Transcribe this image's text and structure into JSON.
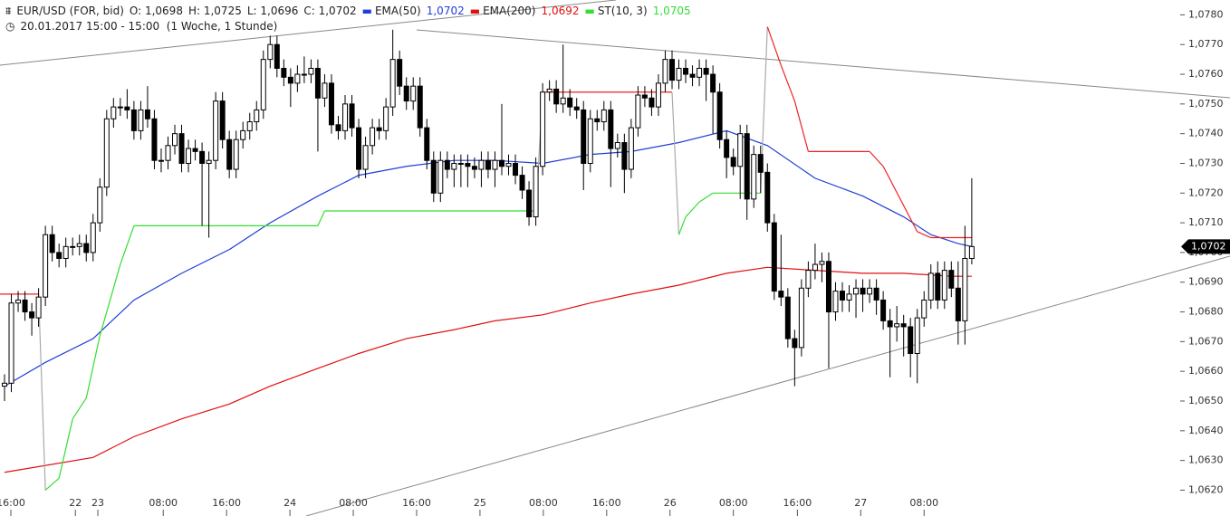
{
  "chart_data": {
    "type": "candlestick",
    "title": "EUR/USD (FOR, bid)",
    "ohlc_labels": [
      "O: 1,0698",
      "H: 1,0725",
      "L: 1,0696",
      "C: 1,0702"
    ],
    "subtitle": "20.01.2017 15:00 - 15:00  (1 Woche, 1 Stunde)",
    "ylim": [
      1.0618,
      1.0785
    ],
    "yticks": [
      {
        "value": 1.062,
        "label": "1,0620"
      },
      {
        "value": 1.063,
        "label": "1,0630"
      },
      {
        "value": 1.064,
        "label": "1,0640"
      },
      {
        "value": 1.065,
        "label": "1,0650"
      },
      {
        "value": 1.066,
        "label": "1,0660"
      },
      {
        "value": 1.067,
        "label": "1,0670"
      },
      {
        "value": 1.068,
        "label": "1,0680"
      },
      {
        "value": 1.069,
        "label": "1,0690"
      },
      {
        "value": 1.07,
        "label": "1,0700"
      },
      {
        "value": 1.071,
        "label": "1,0710"
      },
      {
        "value": 1.072,
        "label": "1,0720"
      },
      {
        "value": 1.073,
        "label": "1,0730"
      },
      {
        "value": 1.074,
        "label": "1,0740"
      },
      {
        "value": 1.075,
        "label": "1,0750"
      },
      {
        "value": 1.076,
        "label": "1,0760"
      },
      {
        "value": 1.077,
        "label": "1,0770"
      },
      {
        "value": 1.078,
        "label": "1,0780"
      }
    ],
    "xlim": [
      -0.665,
      172.2
    ],
    "xticks": [
      {
        "value": 0.93,
        "label": "16:00"
      },
      {
        "value": 10.4,
        "label": "22"
      },
      {
        "value": 13.7,
        "label": "23"
      },
      {
        "value": 23.3,
        "label": "08:00"
      },
      {
        "value": 32.6,
        "label": "16:00"
      },
      {
        "value": 41.9,
        "label": "24"
      },
      {
        "value": 51.2,
        "label": "08:00"
      },
      {
        "value": 60.5,
        "label": "16:00"
      },
      {
        "value": 69.8,
        "label": "25"
      },
      {
        "value": 79.1,
        "label": "08:00"
      },
      {
        "value": 88.4,
        "label": "16:00"
      },
      {
        "value": 97.7,
        "label": "26"
      },
      {
        "value": 107,
        "label": "08:00"
      },
      {
        "value": 116.4,
        "label": "16:00"
      },
      {
        "value": 125.7,
        "label": "27"
      },
      {
        "value": 135,
        "label": "08:00"
      }
    ],
    "last_price": {
      "value": 1.0702,
      "label": "1,0702"
    },
    "ohlc": [
      [
        1.0655,
        1.0659,
        1.065,
        1.0656
      ],
      [
        1.0656,
        1.0686,
        1.0653,
        1.0683
      ],
      [
        1.0683,
        1.0687,
        1.068,
        1.0684
      ],
      [
        1.0684,
        1.0687,
        1.0677,
        1.068
      ],
      [
        1.068,
        1.0683,
        1.0672,
        1.0678
      ],
      [
        1.0678,
        1.0688,
        1.0675,
        1.0685
      ],
      [
        1.0685,
        1.0709,
        1.0682,
        1.0706
      ],
      [
        1.0706,
        1.0709,
        1.0697,
        1.07
      ],
      [
        1.07,
        1.0703,
        1.0695,
        1.0698
      ],
      [
        1.0698,
        1.0705,
        1.0695,
        1.0702
      ],
      [
        1.0702,
        1.0705,
        1.0699,
        1.0702
      ],
      [
        1.0702,
        1.0706,
        1.0699,
        1.0703
      ],
      [
        1.0703,
        1.0706,
        1.0697,
        1.07
      ],
      [
        1.07,
        1.0713,
        1.0697,
        1.071
      ],
      [
        1.071,
        1.0725,
        1.0707,
        1.0722
      ],
      [
        1.0722,
        1.0748,
        1.0719,
        1.0745
      ],
      [
        1.0745,
        1.0752,
        1.0742,
        1.0749
      ],
      [
        1.0749,
        1.0752,
        1.0746,
        1.0749
      ],
      [
        1.0749,
        1.0755,
        1.0745,
        1.0748
      ],
      [
        1.0748,
        1.0751,
        1.0738,
        1.0741
      ],
      [
        1.0741,
        1.0751,
        1.0738,
        1.0748
      ],
      [
        1.0748,
        1.0756,
        1.0742,
        1.0745
      ],
      [
        1.0745,
        1.0748,
        1.0728,
        1.0731
      ],
      [
        1.0731,
        1.0735,
        1.0727,
        1.0731
      ],
      [
        1.0731,
        1.0739,
        1.0728,
        1.0736
      ],
      [
        1.0736,
        1.0743,
        1.0733,
        1.074
      ],
      [
        1.074,
        1.0743,
        1.0727,
        1.073
      ],
      [
        1.073,
        1.0738,
        1.0727,
        1.0735
      ],
      [
        1.0735,
        1.0738,
        1.0731,
        1.0734
      ],
      [
        1.0734,
        1.0737,
        1.0709,
        1.073
      ],
      [
        1.073,
        1.0734,
        1.0705,
        1.0731
      ],
      [
        1.0731,
        1.0754,
        1.0728,
        1.0751
      ],
      [
        1.0751,
        1.0754,
        1.0735,
        1.0738
      ],
      [
        1.0738,
        1.0741,
        1.0725,
        1.0728
      ],
      [
        1.0728,
        1.0741,
        1.0725,
        1.0738
      ],
      [
        1.0738,
        1.0744,
        1.0735,
        1.0741
      ],
      [
        1.0741,
        1.0747,
        1.0738,
        1.0744
      ],
      [
        1.0744,
        1.0751,
        1.0741,
        1.0748
      ],
      [
        1.0748,
        1.0768,
        1.0745,
        1.0765
      ],
      [
        1.0765,
        1.0773,
        1.0762,
        1.077
      ],
      [
        1.077,
        1.0773,
        1.0759,
        1.0762
      ],
      [
        1.0762,
        1.0765,
        1.0756,
        1.0759
      ],
      [
        1.0759,
        1.0762,
        1.0749,
        1.0757
      ],
      [
        1.0757,
        1.0763,
        1.0754,
        1.076
      ],
      [
        1.076,
        1.0766,
        1.0757,
        1.076
      ],
      [
        1.076,
        1.0765,
        1.0757,
        1.0762
      ],
      [
        1.0762,
        1.0765,
        1.0734,
        1.0752
      ],
      [
        1.0752,
        1.076,
        1.0749,
        1.0757
      ],
      [
        1.0757,
        1.076,
        1.074,
        1.0743
      ],
      [
        1.0743,
        1.0746,
        1.0738,
        1.0741
      ],
      [
        1.0741,
        1.0753,
        1.0738,
        1.075
      ],
      [
        1.075,
        1.0753,
        1.0739,
        1.0742
      ],
      [
        1.0742,
        1.0745,
        1.0725,
        1.0728
      ],
      [
        1.0728,
        1.0739,
        1.0725,
        1.0736
      ],
      [
        1.0736,
        1.0745,
        1.0733,
        1.0742
      ],
      [
        1.0742,
        1.0745,
        1.0738,
        1.0741
      ],
      [
        1.0741,
        1.0752,
        1.0738,
        1.0749
      ],
      [
        1.0749,
        1.0775,
        1.0746,
        1.0765
      ],
      [
        1.0765,
        1.0768,
        1.0753,
        1.0756
      ],
      [
        1.0756,
        1.0759,
        1.0748,
        1.0751
      ],
      [
        1.0751,
        1.0759,
        1.0748,
        1.0756
      ],
      [
        1.0756,
        1.0759,
        1.0739,
        1.0742
      ],
      [
        1.0742,
        1.0745,
        1.0728,
        1.0731
      ],
      [
        1.0731,
        1.0734,
        1.0717,
        1.072
      ],
      [
        1.072,
        1.0734,
        1.0717,
        1.0731
      ],
      [
        1.0731,
        1.0734,
        1.0725,
        1.0728
      ],
      [
        1.0728,
        1.0733,
        1.0722,
        1.073
      ],
      [
        1.073,
        1.0733,
        1.0722,
        1.073
      ],
      [
        1.073,
        1.0733,
        1.0722,
        1.0729
      ],
      [
        1.0729,
        1.0732,
        1.0725,
        1.0728
      ],
      [
        1.0728,
        1.0734,
        1.0722,
        1.0731
      ],
      [
        1.0731,
        1.0734,
        1.0725,
        1.0728
      ],
      [
        1.0728,
        1.0734,
        1.0722,
        1.0731
      ],
      [
        1.0731,
        1.075,
        1.0726,
        1.0729
      ],
      [
        1.0729,
        1.0733,
        1.0726,
        1.073
      ],
      [
        1.073,
        1.0733,
        1.0723,
        1.0726
      ],
      [
        1.0726,
        1.0729,
        1.0718,
        1.0721
      ],
      [
        1.0721,
        1.0724,
        1.0709,
        1.0712
      ],
      [
        1.0712,
        1.0732,
        1.0709,
        1.0729
      ],
      [
        1.0729,
        1.0757,
        1.0726,
        1.0754
      ],
      [
        1.0754,
        1.0758,
        1.0751,
        1.0755
      ],
      [
        1.0755,
        1.0758,
        1.0747,
        1.075
      ],
      [
        1.075,
        1.077,
        1.0747,
        1.0752
      ],
      [
        1.0752,
        1.0755,
        1.0746,
        1.0749
      ],
      [
        1.0749,
        1.0752,
        1.0745,
        1.0748
      ],
      [
        1.0748,
        1.0751,
        1.0721,
        1.073
      ],
      [
        1.073,
        1.0748,
        1.0727,
        1.0745
      ],
      [
        1.0745,
        1.0748,
        1.0741,
        1.0744
      ],
      [
        1.0744,
        1.0751,
        1.0741,
        1.0748
      ],
      [
        1.0748,
        1.0751,
        1.0722,
        1.0735
      ],
      [
        1.0735,
        1.074,
        1.0732,
        1.0737
      ],
      [
        1.0737,
        1.074,
        1.072,
        1.0728
      ],
      [
        1.0728,
        1.0745,
        1.0725,
        1.0742
      ],
      [
        1.0742,
        1.0756,
        1.0739,
        1.0753
      ],
      [
        1.0753,
        1.0756,
        1.0749,
        1.0752
      ],
      [
        1.0752,
        1.0755,
        1.0746,
        1.0749
      ],
      [
        1.0749,
        1.076,
        1.0746,
        1.0757
      ],
      [
        1.0757,
        1.0768,
        1.0754,
        1.0765
      ],
      [
        1.0765,
        1.0768,
        1.0755,
        1.0758
      ],
      [
        1.0758,
        1.0765,
        1.0755,
        1.0762
      ],
      [
        1.0762,
        1.0765,
        1.0757,
        1.076
      ],
      [
        1.076,
        1.0763,
        1.0756,
        1.0759
      ],
      [
        1.0759,
        1.0765,
        1.0756,
        1.0762
      ],
      [
        1.0762,
        1.0765,
        1.0751,
        1.076
      ],
      [
        1.076,
        1.0763,
        1.074,
        1.0754
      ],
      [
        1.0754,
        1.0757,
        1.0735,
        1.0738
      ],
      [
        1.0738,
        1.0741,
        1.0725,
        1.0732
      ],
      [
        1.0732,
        1.0735,
        1.0726,
        1.0729
      ],
      [
        1.0729,
        1.0743,
        1.0718,
        1.074
      ],
      [
        1.074,
        1.0743,
        1.0711,
        1.0718
      ],
      [
        1.0718,
        1.0736,
        1.0715,
        1.0733
      ],
      [
        1.0733,
        1.0736,
        1.072,
        1.0727
      ],
      [
        1.0727,
        1.073,
        1.0707,
        1.071
      ],
      [
        1.071,
        1.0713,
        1.0684,
        1.0687
      ],
      [
        1.0687,
        1.0706,
        1.0682,
        1.0685
      ],
      [
        1.0685,
        1.0688,
        1.0668,
        1.0671
      ],
      [
        1.0671,
        1.0674,
        1.0655,
        1.0668
      ],
      [
        1.0668,
        1.0691,
        1.0665,
        1.0688
      ],
      [
        1.0688,
        1.0697,
        1.0685,
        1.0694
      ],
      [
        1.0694,
        1.0703,
        1.0691,
        1.0696
      ],
      [
        1.0696,
        1.07,
        1.069,
        1.0697
      ],
      [
        1.0697,
        1.07,
        1.0661,
        1.068
      ],
      [
        1.068,
        1.069,
        1.0677,
        1.0687
      ],
      [
        1.0687,
        1.069,
        1.068,
        1.0684
      ],
      [
        1.0684,
        1.0689,
        1.068,
        1.0686
      ],
      [
        1.0686,
        1.0691,
        1.0678,
        1.0688
      ],
      [
        1.0688,
        1.0691,
        1.068,
        1.0686
      ],
      [
        1.0686,
        1.0691,
        1.0683,
        1.0688
      ],
      [
        1.0688,
        1.0691,
        1.0679,
        1.0684
      ],
      [
        1.0684,
        1.0687,
        1.0674,
        1.0677
      ],
      [
        1.0677,
        1.0681,
        1.0658,
        1.0675
      ],
      [
        1.0675,
        1.0682,
        1.067,
        1.0676
      ],
      [
        1.0676,
        1.0679,
        1.0665,
        1.0675
      ],
      [
        1.0675,
        1.0678,
        1.0658,
        1.0666
      ],
      [
        1.0666,
        1.0681,
        1.0656,
        1.0678
      ],
      [
        1.0678,
        1.0687,
        1.0675,
        1.0684
      ],
      [
        1.0684,
        1.0696,
        1.0681,
        1.0693
      ],
      [
        1.0693,
        1.0697,
        1.0681,
        1.0684
      ],
      [
        1.0684,
        1.0697,
        1.0681,
        1.0694
      ],
      [
        1.0694,
        1.0697,
        1.0685,
        1.0688
      ],
      [
        1.0688,
        1.0697,
        1.0669,
        1.0677
      ],
      [
        1.0677,
        1.0709,
        1.0669,
        1.0698
      ],
      [
        1.0698,
        1.0725,
        1.0696,
        1.0702
      ]
    ],
    "series": [
      {
        "name": "EMA(50)",
        "color": "#1f3fd6",
        "value_label": "1,0702",
        "x": [
          0,
          6,
          13,
          19,
          26,
          33,
          39,
          46,
          52,
          59,
          66,
          72,
          79,
          86,
          92,
          99,
          106,
          112,
          119,
          126,
          132,
          136,
          140,
          142
        ],
        "values": [
          1.0655,
          1.0663,
          1.0671,
          1.0684,
          1.0693,
          1.0701,
          1.071,
          1.0719,
          1.0726,
          1.0729,
          1.0731,
          1.0731,
          1.073,
          1.0733,
          1.0734,
          1.0737,
          1.0741,
          1.0736,
          1.0725,
          1.0719,
          1.0712,
          1.0706,
          1.0703,
          1.0702
        ]
      },
      {
        "name": "EMA(200)",
        "color": "#e01010",
        "value_label": "1,0692",
        "x": [
          0,
          13,
          19,
          26,
          33,
          39,
          46,
          52,
          59,
          66,
          72,
          79,
          86,
          92,
          99,
          106,
          112,
          119,
          126,
          132,
          139,
          142
        ],
        "values": [
          1.0626,
          1.0631,
          1.0638,
          1.0644,
          1.0649,
          1.0655,
          1.0661,
          1.0666,
          1.0671,
          1.0674,
          1.0677,
          1.0679,
          1.0683,
          1.0686,
          1.0689,
          1.0693,
          1.0695,
          1.0694,
          1.0693,
          1.0693,
          1.0692,
          1.0692
        ]
      },
      {
        "name": "ST(10, 3)",
        "color": "#33dd33",
        "down_color": "#ee2222",
        "value_label": "1,0705",
        "x": [
          -0.665,
          5,
          6,
          8,
          10,
          12,
          14,
          17,
          19,
          46,
          47,
          78,
          79,
          98,
          99,
          100,
          102,
          104,
          111,
          112,
          114,
          116,
          118,
          127,
          129,
          134,
          136,
          142
        ],
        "values": [
          1.0686,
          1.0686,
          1.062,
          1.0624,
          1.0644,
          1.0651,
          1.0672,
          1.0696,
          1.0709,
          1.0709,
          1.0714,
          1.0714,
          1.0754,
          1.0754,
          1.0706,
          1.0712,
          1.0717,
          1.072,
          1.072,
          1.0776,
          1.0763,
          1.0751,
          1.0734,
          1.0734,
          1.0729,
          1.0707,
          1.0705,
          1.0705
        ],
        "down": [
          true,
          true,
          false,
          false,
          false,
          false,
          false,
          false,
          false,
          false,
          false,
          false,
          true,
          true,
          false,
          false,
          false,
          false,
          false,
          true,
          true,
          true,
          true,
          true,
          true,
          true,
          true,
          true
        ]
      }
    ]
  }
}
